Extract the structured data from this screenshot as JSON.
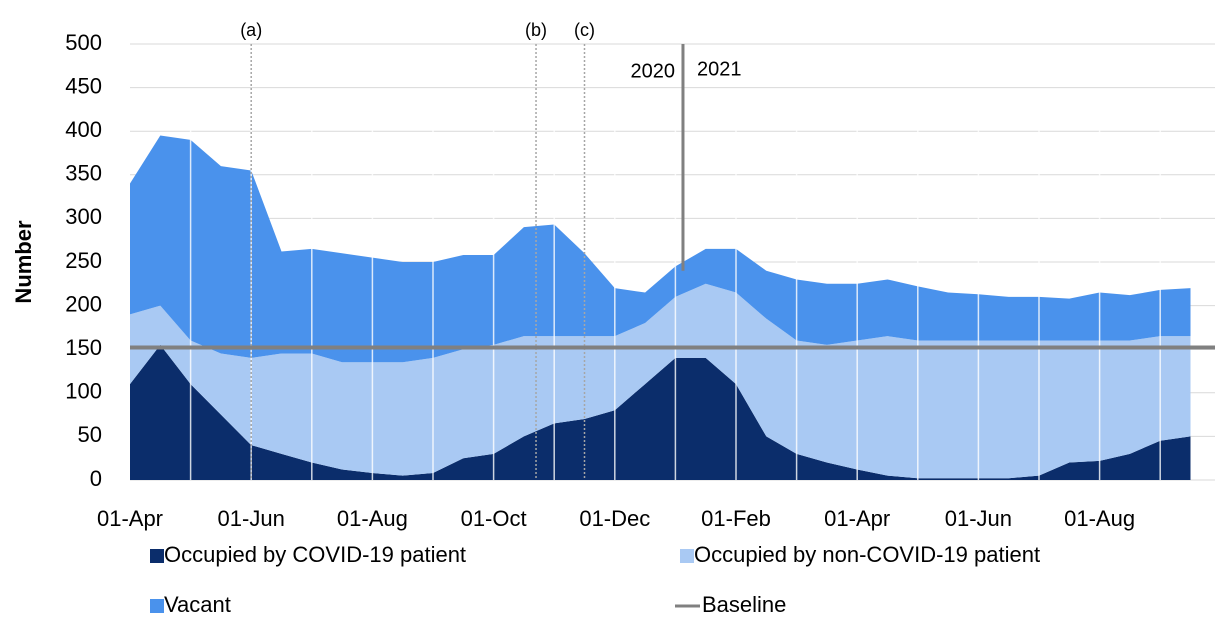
{
  "chart_data": {
    "type": "stacked_area",
    "y_label": "Number",
    "categories": [
      "01-Apr",
      null,
      null,
      null,
      "01-Jun",
      null,
      null,
      null,
      "01-Aug",
      null,
      null,
      null,
      "01-Oct",
      null,
      null,
      null,
      "01-Dec",
      null,
      null,
      null,
      "01-Feb",
      null,
      null,
      null,
      "01-Apr",
      null,
      null,
      null,
      "01-Jun",
      null,
      null,
      null,
      "01-Aug",
      null,
      null,
      null
    ],
    "series": [
      {
        "name": "Occupied by COVID-19 patient",
        "color": "#0b2d6b",
        "values": [
          110,
          155,
          110,
          75,
          40,
          30,
          20,
          12,
          8,
          5,
          8,
          25,
          30,
          50,
          65,
          70,
          80,
          110,
          140,
          140,
          110,
          50,
          30,
          20,
          12,
          5,
          2,
          2,
          2,
          2,
          5,
          20,
          22,
          30,
          45,
          50
        ]
      },
      {
        "name": "Occupied by non-COVID-19 patient",
        "color": "#a9c9f3",
        "values": [
          80,
          45,
          50,
          70,
          100,
          115,
          125,
          123,
          127,
          130,
          132,
          125,
          125,
          115,
          100,
          95,
          85,
          70,
          70,
          85,
          105,
          135,
          130,
          135,
          148,
          160,
          158,
          158,
          158,
          158,
          155,
          140,
          138,
          130,
          120,
          115
        ]
      },
      {
        "name": "Vacant",
        "color": "#4a92ec",
        "values": [
          150,
          195,
          230,
          215,
          215,
          117,
          120,
          125,
          120,
          115,
          110,
          108,
          103,
          125,
          128,
          95,
          55,
          35,
          35,
          40,
          50,
          55,
          70,
          70,
          65,
          65,
          62,
          55,
          53,
          50,
          50,
          48,
          55,
          52,
          53,
          55
        ]
      }
    ],
    "baseline": {
      "name": "Baseline",
      "color": "#808080",
      "value": 152
    },
    "annotations": [
      {
        "label": "(a)",
        "x": 4
      },
      {
        "label": "(b)",
        "x": 13.4
      },
      {
        "label": "(c)",
        "x": 15
      }
    ],
    "year_divider": {
      "x": 18.25,
      "before": "2020",
      "after": "2021"
    },
    "ylim": [
      0,
      500
    ],
    "yticks": [
      0,
      50,
      100,
      150,
      200,
      250,
      300,
      350,
      400,
      450,
      500
    ],
    "grid": true
  }
}
